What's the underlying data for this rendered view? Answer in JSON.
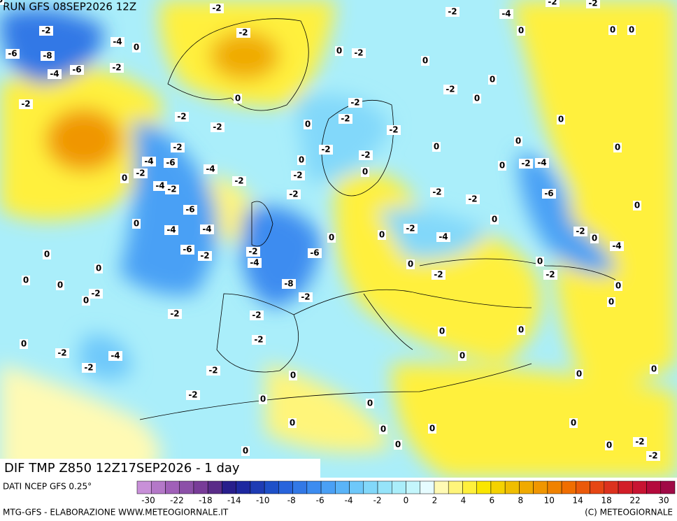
{
  "header": {
    "run": "RUN GFS 08SEP2026 12Z"
  },
  "map": {
    "caption": "DIF TMP Z850 12Z17SEP2026 - 1 day",
    "contour_labels": [
      "-2",
      "-2",
      "-4",
      "-2",
      "-2",
      "-2",
      "-2",
      "0",
      "0",
      "0",
      "-4",
      "0",
      "-6",
      "-8",
      "0",
      "-2",
      "-6",
      "-4",
      "-2",
      "0",
      "0",
      "-2",
      "0",
      "0",
      "-2",
      "-2",
      "-2",
      "-2",
      "0",
      "0",
      "-2",
      "-2",
      "0",
      "0",
      "0",
      "-2",
      "-2",
      "-4",
      "-6",
      "-2",
      "0",
      "0",
      "-2",
      "-4",
      "-4",
      "-2",
      "0",
      "-2",
      "0",
      "-2",
      "-2",
      "-4",
      "-2",
      "-2",
      "-2",
      "-6",
      "0",
      "-6",
      "0",
      "0",
      "-4",
      "-4",
      "-2",
      "0",
      "-2",
      "-4",
      "0",
      "0",
      "-6",
      "-4",
      "-6",
      "-2",
      "-2",
      "0",
      "-4",
      "0",
      "0",
      "0",
      "-2",
      "-2",
      "0",
      "0",
      "-8",
      "0",
      "-2",
      "0",
      "-2",
      "0",
      "-2",
      "-2",
      "0",
      "0",
      "-2",
      "0",
      "-2",
      "-4",
      "0",
      "-2",
      "-2",
      "0",
      "0",
      "0",
      "-2",
      "0",
      "0",
      "0",
      "0",
      "0",
      "0",
      "0",
      "-2",
      "0",
      "0",
      "-2",
      "0"
    ]
  },
  "colorbar": {
    "colors": [
      "#c890d8",
      "#b478c8",
      "#a060b8",
      "#8c50a8",
      "#783c98",
      "#5a2c88",
      "#281e8c",
      "#1e28a0",
      "#1e3cb4",
      "#1e50c8",
      "#2864dc",
      "#3278e6",
      "#3c8cf0",
      "#4aa0f5",
      "#5ab4f8",
      "#6ec8fa",
      "#82d8fa",
      "#96e4fa",
      "#aaeefa",
      "#c4f6fc",
      "#e6fcff",
      "#fffab4",
      "#fff57a",
      "#fff03c",
      "#fae600",
      "#f5d200",
      "#f0be00",
      "#f0aa00",
      "#f09600",
      "#f08200",
      "#f06e00",
      "#eb5a0a",
      "#e64614",
      "#dc321e",
      "#d21e28",
      "#c81432",
      "#b40a3c",
      "#a00a46"
    ],
    "ticks": [
      "-30",
      "-22",
      "-18",
      "-14",
      "-10",
      "-8",
      "-6",
      "-4",
      "-2",
      "0",
      "2",
      "4",
      "6",
      "8",
      "10",
      "14",
      "18",
      "22",
      "30"
    ]
  },
  "footer": {
    "source": "DATI NCEP GFS 0.25°",
    "credit": "MTG-GFS - ELABORAZIONE WWW.METEOGIORNALE.IT",
    "copyright": "(C) METEOGIORNALE"
  }
}
